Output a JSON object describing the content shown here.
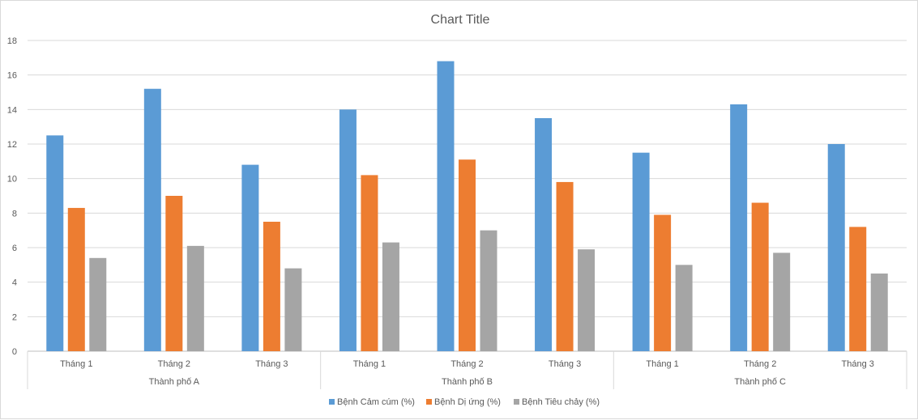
{
  "chart_data": {
    "type": "bar",
    "title": "Chart Title",
    "groups": [
      {
        "name": "Thành phố A",
        "categories": [
          "Tháng 1",
          "Tháng 2",
          "Tháng 3"
        ]
      },
      {
        "name": "Thành phố B",
        "categories": [
          "Tháng 1",
          "Tháng 2",
          "Tháng 3"
        ]
      },
      {
        "name": "Thành phố C",
        "categories": [
          "Tháng 1",
          "Tháng 2",
          "Tháng 3"
        ]
      }
    ],
    "series": [
      {
        "name": "Bệnh Cảm cúm (%)",
        "color": "#5b9bd5",
        "values": [
          12.5,
          15.2,
          10.8,
          14.0,
          16.8,
          13.5,
          11.5,
          14.3,
          12.0
        ]
      },
      {
        "name": "Bệnh Dị ứng (%)",
        "color": "#ed7d31",
        "values": [
          8.3,
          9.0,
          7.5,
          10.2,
          11.1,
          9.8,
          7.9,
          8.6,
          7.2
        ]
      },
      {
        "name": "Bệnh Tiêu chảy (%)",
        "color": "#a5a5a5",
        "values": [
          5.4,
          6.1,
          4.8,
          6.3,
          7.0,
          5.9,
          5.0,
          5.7,
          4.5
        ]
      }
    ],
    "ylim": [
      0,
      18
    ],
    "ytick_step": 2,
    "grid": true,
    "legend_position": "bottom"
  }
}
